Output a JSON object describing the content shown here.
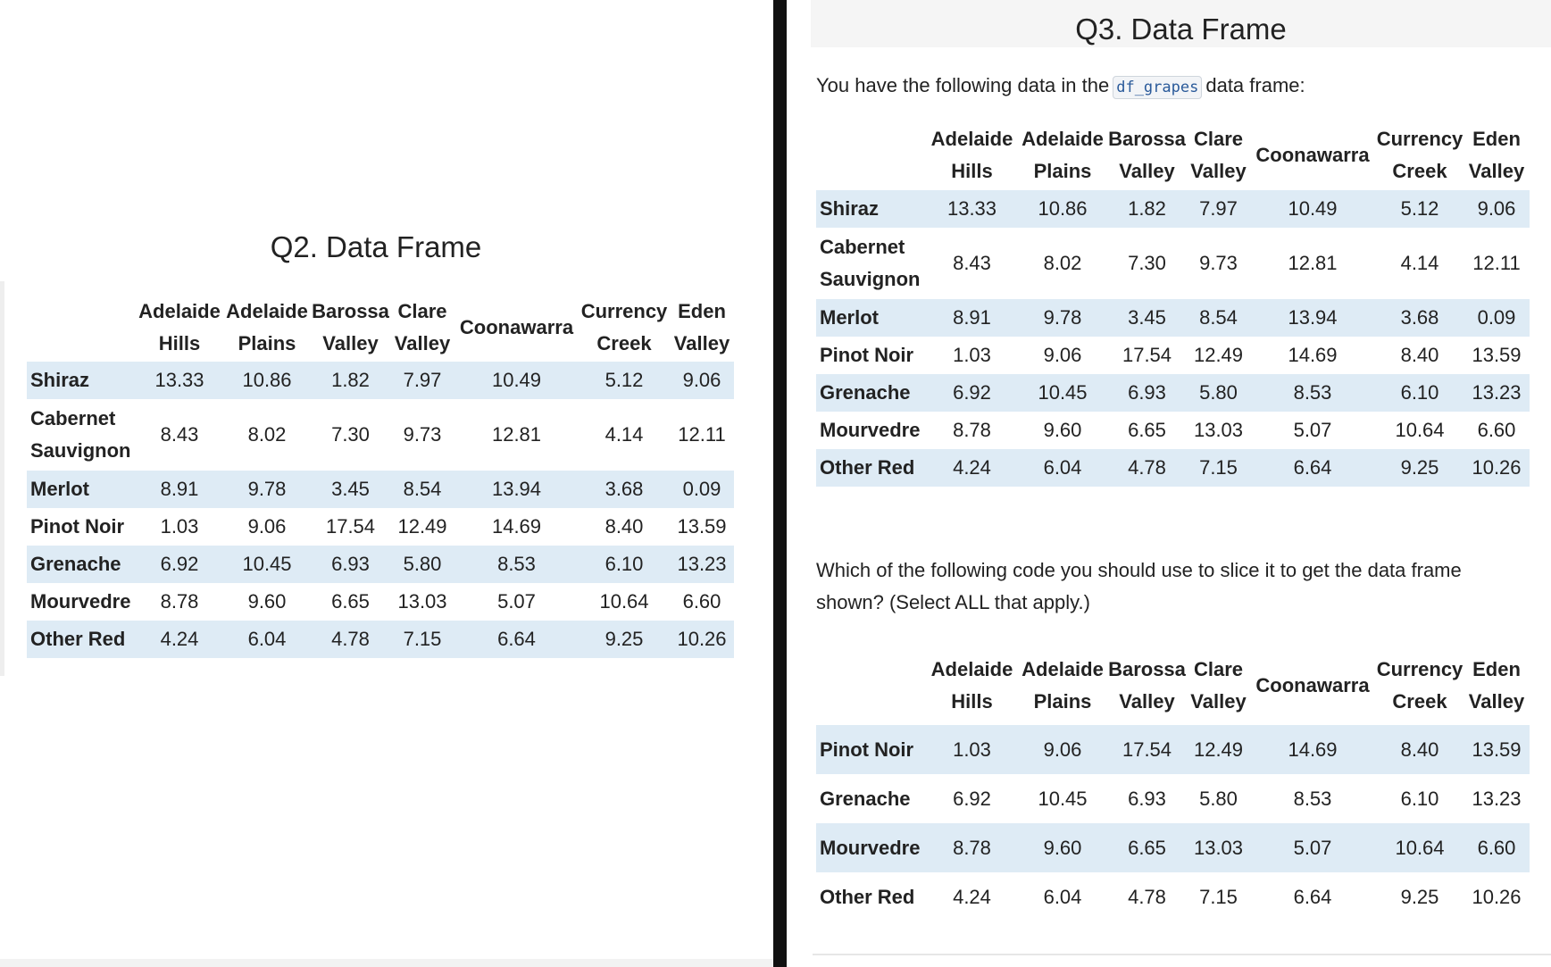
{
  "q2": {
    "title": "Q2. Data Frame",
    "table": {
      "columns": [
        "Adelaide Hills",
        "Adelaide Plains",
        "Barossa Valley",
        "Clare Valley",
        "Coonawarra",
        "Currency Creek",
        "Eden Valley"
      ],
      "rows": [
        [
          "Shiraz",
          "13.33",
          "10.86",
          "1.82",
          "7.97",
          "10.49",
          "5.12",
          "9.06"
        ],
        [
          "Cabernet Sauvignon",
          "8.43",
          "8.02",
          "7.30",
          "9.73",
          "12.81",
          "4.14",
          "12.11"
        ],
        [
          "Merlot",
          "8.91",
          "9.78",
          "3.45",
          "8.54",
          "13.94",
          "3.68",
          "0.09"
        ],
        [
          "Pinot Noir",
          "1.03",
          "9.06",
          "17.54",
          "12.49",
          "14.69",
          "8.40",
          "13.59"
        ],
        [
          "Grenache",
          "6.92",
          "10.45",
          "6.93",
          "5.80",
          "8.53",
          "6.10",
          "13.23"
        ],
        [
          "Mourvedre",
          "8.78",
          "9.60",
          "6.65",
          "13.03",
          "5.07",
          "10.64",
          "6.60"
        ],
        [
          "Other Red",
          "4.24",
          "6.04",
          "4.78",
          "7.15",
          "6.64",
          "9.25",
          "10.26"
        ]
      ]
    }
  },
  "q3": {
    "title": "Q3. Data Frame",
    "intro": {
      "before": "You have the following data in the",
      "code": "df_grapes",
      "after": "data frame:"
    },
    "table": {
      "columns": [
        "Adelaide Hills",
        "Adelaide Plains",
        "Barossa Valley",
        "Clare Valley",
        "Coonawarra",
        "Currency Creek",
        "Eden Valley"
      ],
      "rows": [
        [
          "Shiraz",
          "13.33",
          "10.86",
          "1.82",
          "7.97",
          "10.49",
          "5.12",
          "9.06"
        ],
        [
          "Cabernet Sauvignon",
          "8.43",
          "8.02",
          "7.30",
          "9.73",
          "12.81",
          "4.14",
          "12.11"
        ],
        [
          "Merlot",
          "8.91",
          "9.78",
          "3.45",
          "8.54",
          "13.94",
          "3.68",
          "0.09"
        ],
        [
          "Pinot Noir",
          "1.03",
          "9.06",
          "17.54",
          "12.49",
          "14.69",
          "8.40",
          "13.59"
        ],
        [
          "Grenache",
          "6.92",
          "10.45",
          "6.93",
          "5.80",
          "8.53",
          "6.10",
          "13.23"
        ],
        [
          "Mourvedre",
          "8.78",
          "9.60",
          "6.65",
          "13.03",
          "5.07",
          "10.64",
          "6.60"
        ],
        [
          "Other Red",
          "4.24",
          "6.04",
          "4.78",
          "7.15",
          "6.64",
          "9.25",
          "10.26"
        ]
      ]
    },
    "question": "Which of the following code you should use to slice it to get the data frame shown? (Select ALL that apply.)",
    "result_table": {
      "columns": [
        "Adelaide Hills",
        "Adelaide Plains",
        "Barossa Valley",
        "Clare Valley",
        "Coonawarra",
        "Currency Creek",
        "Eden Valley"
      ],
      "rows": [
        [
          "Pinot Noir",
          "1.03",
          "9.06",
          "17.54",
          "12.49",
          "14.69",
          "8.40",
          "13.59"
        ],
        [
          "Grenache",
          "6.92",
          "10.45",
          "6.93",
          "5.80",
          "8.53",
          "6.10",
          "13.23"
        ],
        [
          "Mourvedre",
          "8.78",
          "9.60",
          "6.65",
          "13.03",
          "5.07",
          "10.64",
          "6.60"
        ],
        [
          "Other Red",
          "4.24",
          "6.04",
          "4.78",
          "7.15",
          "6.64",
          "9.25",
          "10.26"
        ]
      ]
    }
  }
}
